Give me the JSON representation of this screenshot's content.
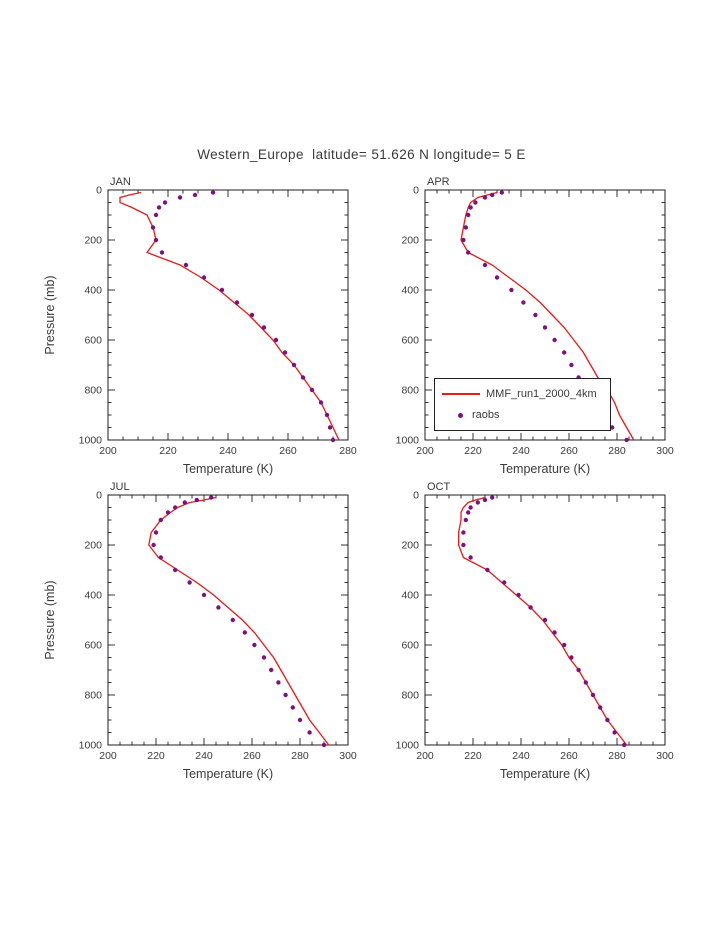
{
  "page_title": "Western_Europe  latitude= 51.626 N longitude= 5 E",
  "colors": {
    "model": "#e51c18",
    "raobs": "#7d117d",
    "frame": "#1f1f1f",
    "text": "#3b3b3b"
  },
  "legend": {
    "entries": [
      {
        "label": "MMF_run1_2000_4km",
        "marker": "line",
        "color": "#e51c18"
      },
      {
        "label": "raobs",
        "marker": "dot",
        "color": "#7d117d"
      }
    ]
  },
  "chart_data": [
    {
      "type": "line",
      "title": "JAN",
      "xlabel": "Temperature (K)",
      "ylabel": "Pressure (mb)",
      "xlim": [
        200,
        280
      ],
      "ylim": [
        0,
        1000
      ],
      "y_inverted": true,
      "show_ylabel": true,
      "xticks": [
        200,
        220,
        240,
        260,
        280
      ],
      "yticks": [
        0,
        200,
        400,
        600,
        800,
        1000
      ],
      "series": [
        {
          "name": "MMF_run1_2000_4km",
          "style": "line",
          "pressure_mb": [
            10,
            20,
            30,
            50,
            70,
            100,
            150,
            200,
            250,
            300,
            350,
            400,
            450,
            500,
            550,
            600,
            650,
            700,
            750,
            800,
            850,
            900,
            950,
            1000
          ],
          "temperature_K": [
            211,
            207,
            204,
            204,
            208,
            213,
            215,
            216,
            213,
            224,
            231,
            237,
            242,
            247,
            251,
            255,
            258,
            262,
            265,
            268,
            271,
            273,
            275,
            277
          ]
        },
        {
          "name": "raobs",
          "style": "scatter",
          "pressure_mb": [
            10,
            20,
            30,
            50,
            70,
            100,
            150,
            200,
            250,
            300,
            350,
            400,
            450,
            500,
            550,
            600,
            650,
            700,
            750,
            800,
            850,
            900,
            950,
            1000
          ],
          "temperature_K": [
            235,
            229,
            224,
            219,
            217,
            216,
            215,
            216,
            218,
            226,
            232,
            238,
            243,
            248,
            252,
            256,
            259,
            262,
            265,
            268,
            271,
            273,
            274,
            275
          ]
        }
      ]
    },
    {
      "type": "line",
      "title": "APR",
      "xlabel": "Temperature (K)",
      "ylabel": "Pressure (mb)",
      "xlim": [
        200,
        300
      ],
      "ylim": [
        0,
        1000
      ],
      "y_inverted": true,
      "show_ylabel": false,
      "xticks": [
        200,
        220,
        240,
        260,
        280,
        300
      ],
      "yticks": [
        0,
        200,
        400,
        600,
        800,
        1000
      ],
      "series": [
        {
          "name": "MMF_run1_2000_4km",
          "style": "line",
          "pressure_mb": [
            10,
            20,
            30,
            50,
            70,
            100,
            150,
            200,
            250,
            300,
            350,
            400,
            450,
            500,
            550,
            600,
            650,
            700,
            750,
            800,
            850,
            900,
            950,
            1000
          ],
          "temperature_K": [
            230,
            226,
            222,
            219,
            218,
            217,
            216,
            215,
            218,
            228,
            235,
            242,
            248,
            253,
            258,
            262,
            266,
            269,
            272,
            276,
            279,
            281,
            284,
            287
          ]
        },
        {
          "name": "raobs",
          "style": "scatter",
          "pressure_mb": [
            10,
            20,
            30,
            50,
            70,
            100,
            150,
            200,
            250,
            300,
            350,
            400,
            450,
            500,
            550,
            600,
            650,
            700,
            750,
            800,
            850,
            900,
            950,
            1000
          ],
          "temperature_K": [
            232,
            228,
            225,
            221,
            219,
            218,
            217,
            216,
            218,
            225,
            230,
            236,
            241,
            246,
            250,
            254,
            258,
            261,
            264,
            267,
            271,
            274,
            278,
            284
          ]
        }
      ]
    },
    {
      "type": "line",
      "title": "JUL",
      "xlabel": "Temperature (K)",
      "ylabel": "Pressure (mb)",
      "xlim": [
        200,
        300
      ],
      "ylim": [
        0,
        1000
      ],
      "y_inverted": true,
      "show_ylabel": true,
      "xticks": [
        200,
        220,
        240,
        260,
        280,
        300
      ],
      "yticks": [
        0,
        200,
        400,
        600,
        800,
        1000
      ],
      "series": [
        {
          "name": "MMF_run1_2000_4km",
          "style": "line",
          "pressure_mb": [
            10,
            20,
            30,
            50,
            70,
            100,
            150,
            200,
            250,
            300,
            350,
            400,
            450,
            500,
            550,
            600,
            650,
            700,
            750,
            800,
            850,
            900,
            950,
            1000
          ],
          "temperature_K": [
            245,
            240,
            234,
            229,
            226,
            222,
            218,
            217,
            221,
            229,
            237,
            244,
            250,
            256,
            261,
            265,
            269,
            272,
            275,
            278,
            281,
            284,
            288,
            292
          ]
        },
        {
          "name": "raobs",
          "style": "scatter",
          "pressure_mb": [
            10,
            20,
            30,
            50,
            70,
            100,
            150,
            200,
            250,
            300,
            350,
            400,
            450,
            500,
            550,
            600,
            650,
            700,
            750,
            800,
            850,
            900,
            950,
            1000
          ],
          "temperature_K": [
            243,
            237,
            232,
            228,
            225,
            222,
            220,
            219,
            222,
            228,
            234,
            240,
            246,
            252,
            257,
            261,
            265,
            268,
            271,
            274,
            277,
            280,
            284,
            290
          ]
        }
      ]
    },
    {
      "type": "line",
      "title": "OCT",
      "xlabel": "Temperature (K)",
      "ylabel": "Pressure (mb)",
      "xlim": [
        200,
        300
      ],
      "ylim": [
        0,
        1000
      ],
      "y_inverted": true,
      "show_ylabel": false,
      "xticks": [
        200,
        220,
        240,
        260,
        280,
        300
      ],
      "yticks": [
        0,
        200,
        400,
        600,
        800,
        1000
      ],
      "series": [
        {
          "name": "MMF_run1_2000_4km",
          "style": "line",
          "pressure_mb": [
            10,
            20,
            30,
            50,
            70,
            100,
            150,
            200,
            250,
            300,
            350,
            400,
            450,
            500,
            550,
            600,
            650,
            700,
            750,
            800,
            850,
            900,
            950,
            1000
          ],
          "temperature_K": [
            225,
            221,
            218,
            216,
            215,
            215,
            214,
            214,
            216,
            226,
            232,
            238,
            244,
            249,
            253,
            257,
            260,
            264,
            267,
            270,
            273,
            276,
            280,
            284
          ]
        },
        {
          "name": "raobs",
          "style": "scatter",
          "pressure_mb": [
            10,
            20,
            30,
            50,
            70,
            100,
            150,
            200,
            250,
            300,
            350,
            400,
            450,
            500,
            550,
            600,
            650,
            700,
            750,
            800,
            850,
            900,
            950,
            1000
          ],
          "temperature_K": [
            228,
            225,
            222,
            219,
            218,
            217,
            216,
            216,
            219,
            226,
            233,
            239,
            244,
            250,
            254,
            258,
            261,
            264,
            267,
            270,
            273,
            276,
            279,
            283
          ]
        }
      ]
    }
  ]
}
